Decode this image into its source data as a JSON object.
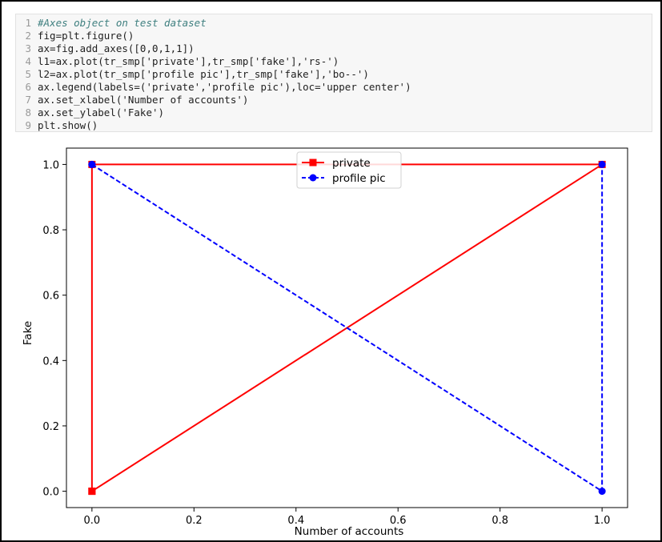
{
  "code": {
    "lines": [
      {
        "n": "1",
        "t": "#Axes object on test dataset"
      },
      {
        "n": "2",
        "t": "fig=plt.figure()"
      },
      {
        "n": "3",
        "t": "ax=fig.add_axes([0,0,1,1])"
      },
      {
        "n": "4",
        "t": "l1=ax.plot(tr_smp['private'],tr_smp['fake'],'rs-')"
      },
      {
        "n": "5",
        "t": "l2=ax.plot(tr_smp['profile pic'],tr_smp['fake'],'bo--')"
      },
      {
        "n": "6",
        "t": "ax.legend(labels=('private','profile pic'),loc='upper center')"
      },
      {
        "n": "7",
        "t": "ax.set_xlabel('Number of accounts')"
      },
      {
        "n": "8",
        "t": "ax.set_ylabel('Fake')"
      },
      {
        "n": "9",
        "t": "plt.show()"
      }
    ]
  },
  "chart_data": {
    "type": "line",
    "xlabel": "Number of accounts",
    "ylabel": "Fake",
    "xlim": [
      -0.05,
      1.05
    ],
    "ylim": [
      -0.05,
      1.05
    ],
    "xticks": [
      "0.0",
      "0.2",
      "0.4",
      "0.6",
      "0.8",
      "1.0"
    ],
    "yticks": [
      "0.0",
      "0.2",
      "0.4",
      "0.6",
      "0.8",
      "1.0"
    ],
    "grid": false,
    "legend_placement": "upper center",
    "series": [
      {
        "name": "private",
        "color": "#ff0000",
        "marker": "square",
        "linestyle": "solid",
        "x": [
          0,
          0,
          1,
          0
        ],
        "y": [
          0,
          1,
          1,
          0
        ]
      },
      {
        "name": "profile pic",
        "color": "#0000ff",
        "marker": "circle",
        "linestyle": "dashed",
        "x": [
          0,
          0,
          1,
          1
        ],
        "y": [
          1,
          1,
          0,
          1
        ]
      }
    ]
  }
}
